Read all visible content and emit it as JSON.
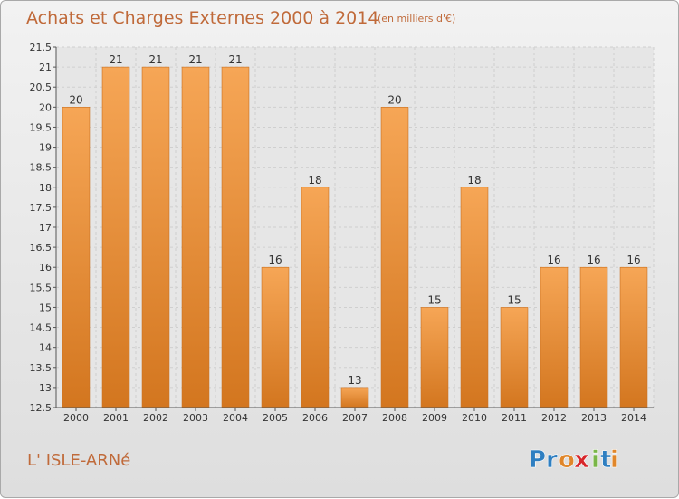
{
  "header": {
    "title": "Achats et Charges Externes 2000 à 2014",
    "subtitle": "(en milliers d'€)"
  },
  "footer": {
    "town": "L' ISLE-ARNé",
    "logo_text": "Proxiti",
    "logo_letters": [
      "P",
      "r",
      "o",
      "x",
      "i",
      "t",
      "i"
    ],
    "logo_colors": [
      "#2f7fc1",
      "#2f7fc1",
      "#e0862a",
      "#d7262b",
      "#7ab648",
      "#2f7fc1",
      "#e0862a"
    ]
  },
  "colors": {
    "bar_light": "#f6a656",
    "bar_dark": "#d3761f",
    "grid": "#cfcfcf",
    "axis": "#555555",
    "text": "#333333",
    "accent": "#c06a3a"
  },
  "chart_data": {
    "type": "bar",
    "title": "Achats et Charges Externes 2000 à 2014",
    "subtitle": "(en milliers d'€)",
    "categories": [
      "2000",
      "2001",
      "2002",
      "2003",
      "2004",
      "2005",
      "2006",
      "2007",
      "2008",
      "2009",
      "2010",
      "2011",
      "2012",
      "2013",
      "2014"
    ],
    "values": [
      20,
      21,
      21,
      21,
      21,
      16,
      18,
      13,
      20,
      15,
      18,
      15,
      16,
      16,
      16
    ],
    "value_labels": [
      "20",
      "21",
      "21",
      "21",
      "21",
      "16",
      "18",
      "13",
      "20",
      "15",
      "18",
      "15",
      "16",
      "16",
      "16"
    ],
    "ylim": [
      12.5,
      21.5
    ],
    "yticks": [
      12.5,
      13,
      13.5,
      14,
      14.5,
      15,
      15.5,
      16,
      16.5,
      17,
      17.5,
      18,
      18.5,
      19,
      19.5,
      20,
      20.5,
      21,
      21.5
    ],
    "ytick_labels": [
      "12.5",
      "13",
      "13.5",
      "14",
      "14.5",
      "15",
      "15.5",
      "16",
      "16.5",
      "17",
      "17.5",
      "18",
      "18.5",
      "19",
      "19.5",
      "20",
      "20.5",
      "21",
      "21.5"
    ],
    "grid": true,
    "legend": "none"
  }
}
